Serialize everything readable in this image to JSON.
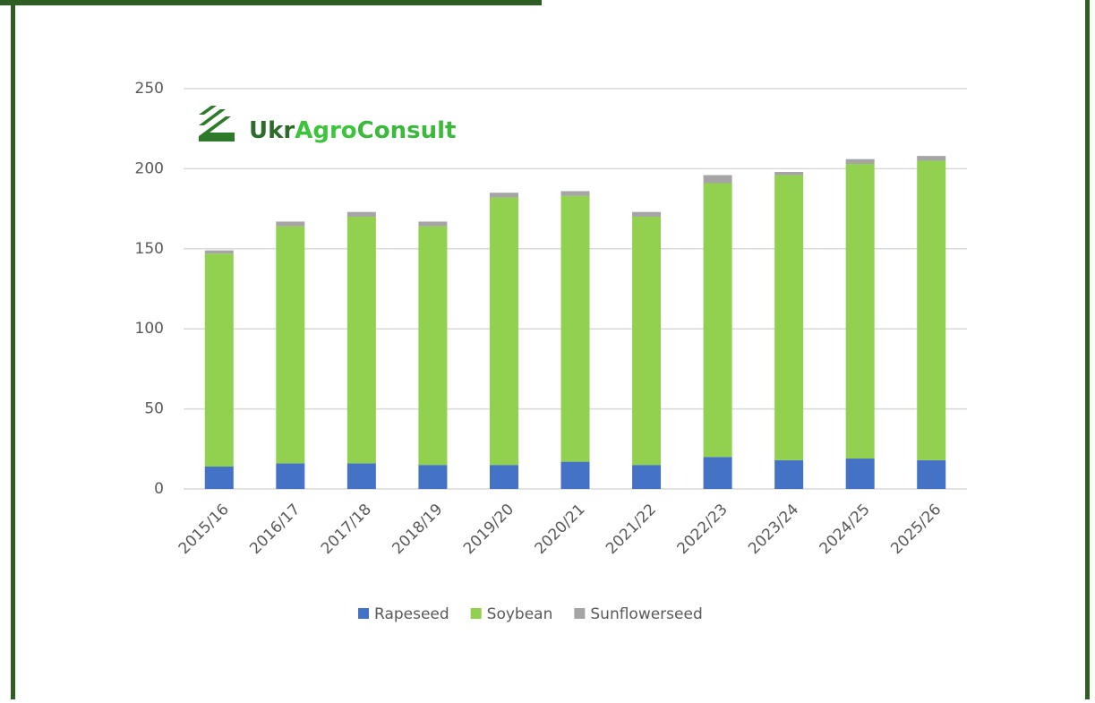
{
  "logo": {
    "parts": [
      "Ukr",
      "Agro",
      "Consult"
    ]
  },
  "chart_data": {
    "type": "stacked_bar",
    "categories": [
      "2015/16",
      "2016/17",
      "2017/18",
      "2018/19",
      "2019/20",
      "2020/21",
      "2021/22",
      "2022/23",
      "2023/24",
      "2024/25",
      "2025/26"
    ],
    "series": [
      {
        "name": "Rapeseed",
        "color": "#4472c4",
        "values": [
          14,
          16,
          16,
          15,
          15,
          17,
          15,
          20,
          18,
          19,
          18
        ]
      },
      {
        "name": "Soybean",
        "color": "#92d050",
        "values": [
          133,
          148,
          154,
          149,
          167,
          166,
          155,
          171,
          178,
          184,
          187
        ]
      },
      {
        "name": "Sunflowerseed",
        "color": "#a5a5a5",
        "values": [
          2,
          3,
          3,
          3,
          3,
          3,
          3,
          5,
          2,
          3,
          3
        ]
      }
    ],
    "ylim": [
      0,
      250
    ],
    "yticks": [
      0,
      50,
      100,
      150,
      200,
      250
    ],
    "grid": true,
    "legend": "bottom"
  }
}
